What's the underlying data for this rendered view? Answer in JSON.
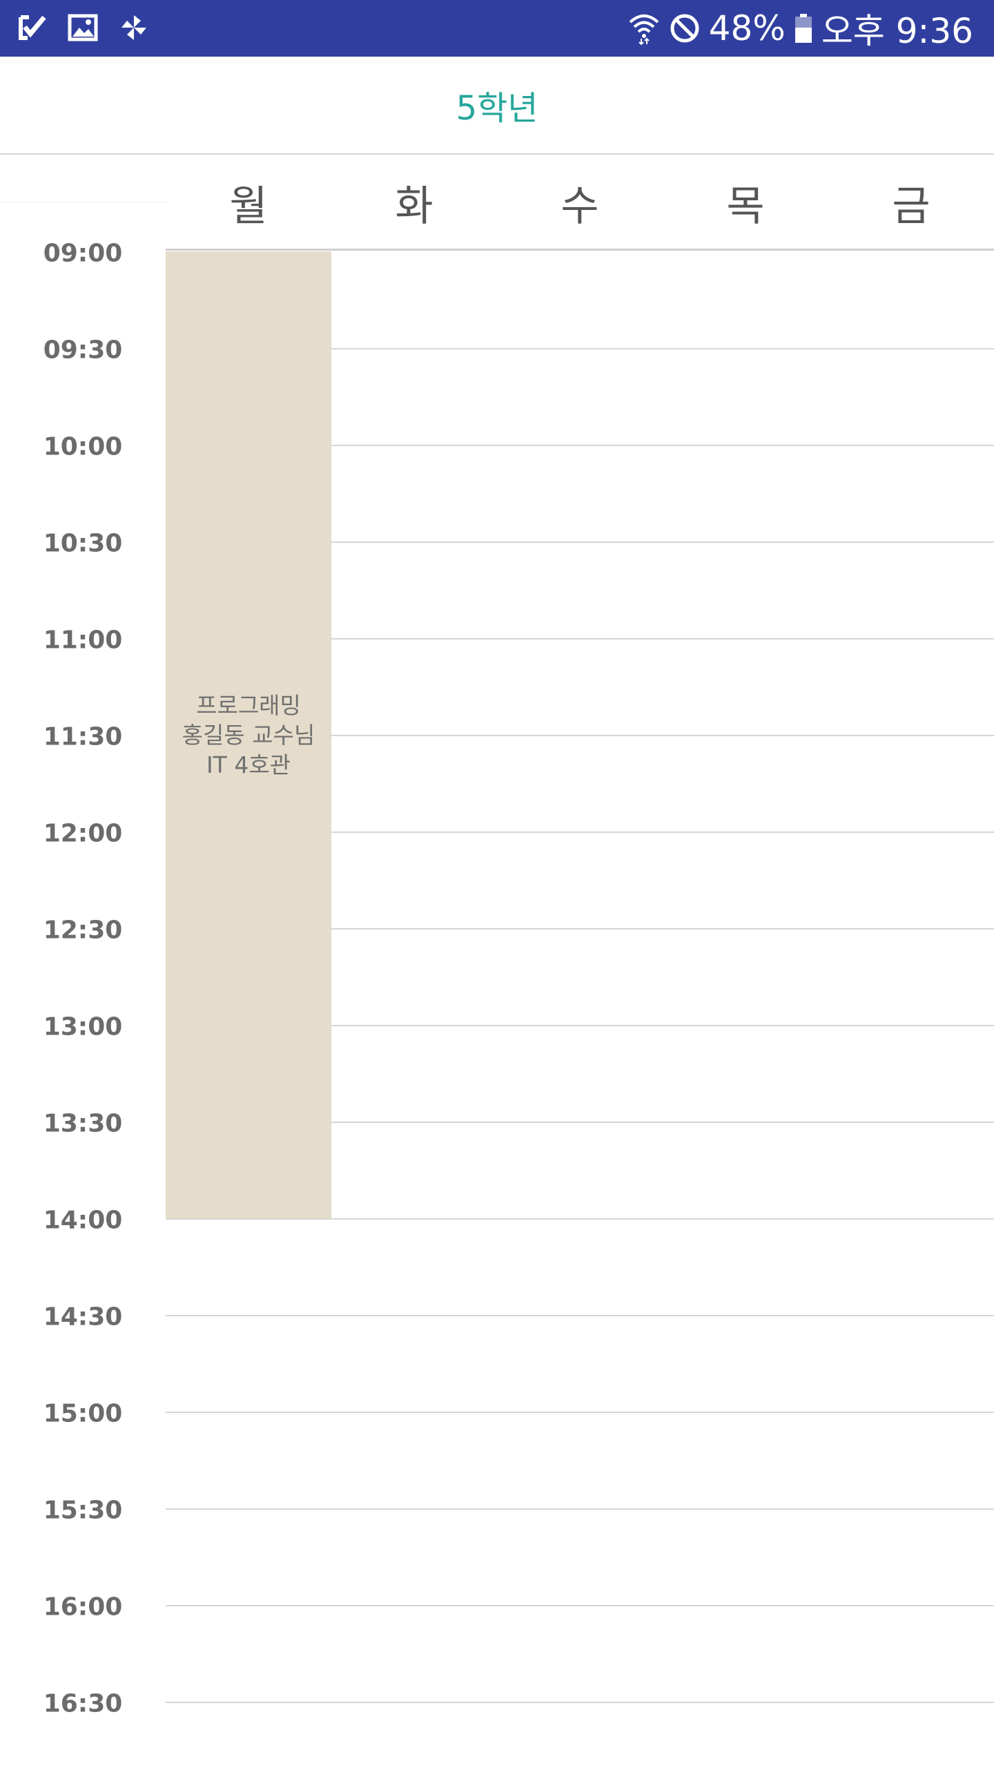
{
  "status_bar": {
    "left_icons": [
      "check-notification-icon",
      "gallery-icon",
      "pinwheel-icon"
    ],
    "right_icons": [
      "wifi-icon",
      "do-not-disturb-icon",
      "battery-icon"
    ],
    "battery_percent": "48%",
    "time": "오후 9:36",
    "background_color": "#303f9f"
  },
  "title": "5학년",
  "title_color": "#26a69a",
  "days": [
    "월",
    "화",
    "수",
    "목",
    "금"
  ],
  "times": [
    "09:00",
    "09:30",
    "10:00",
    "10:30",
    "11:00",
    "11:30",
    "12:00",
    "12:30",
    "13:00",
    "13:30",
    "14:00",
    "14:30",
    "15:00",
    "15:30",
    "16:00",
    "16:30"
  ],
  "events": [
    {
      "day": "월",
      "start": "09:00",
      "end": "14:00",
      "course": "프로그래밍",
      "professor": "홍길동 교수님",
      "room": "IT 4호관",
      "color": "#e5dccb"
    }
  ]
}
